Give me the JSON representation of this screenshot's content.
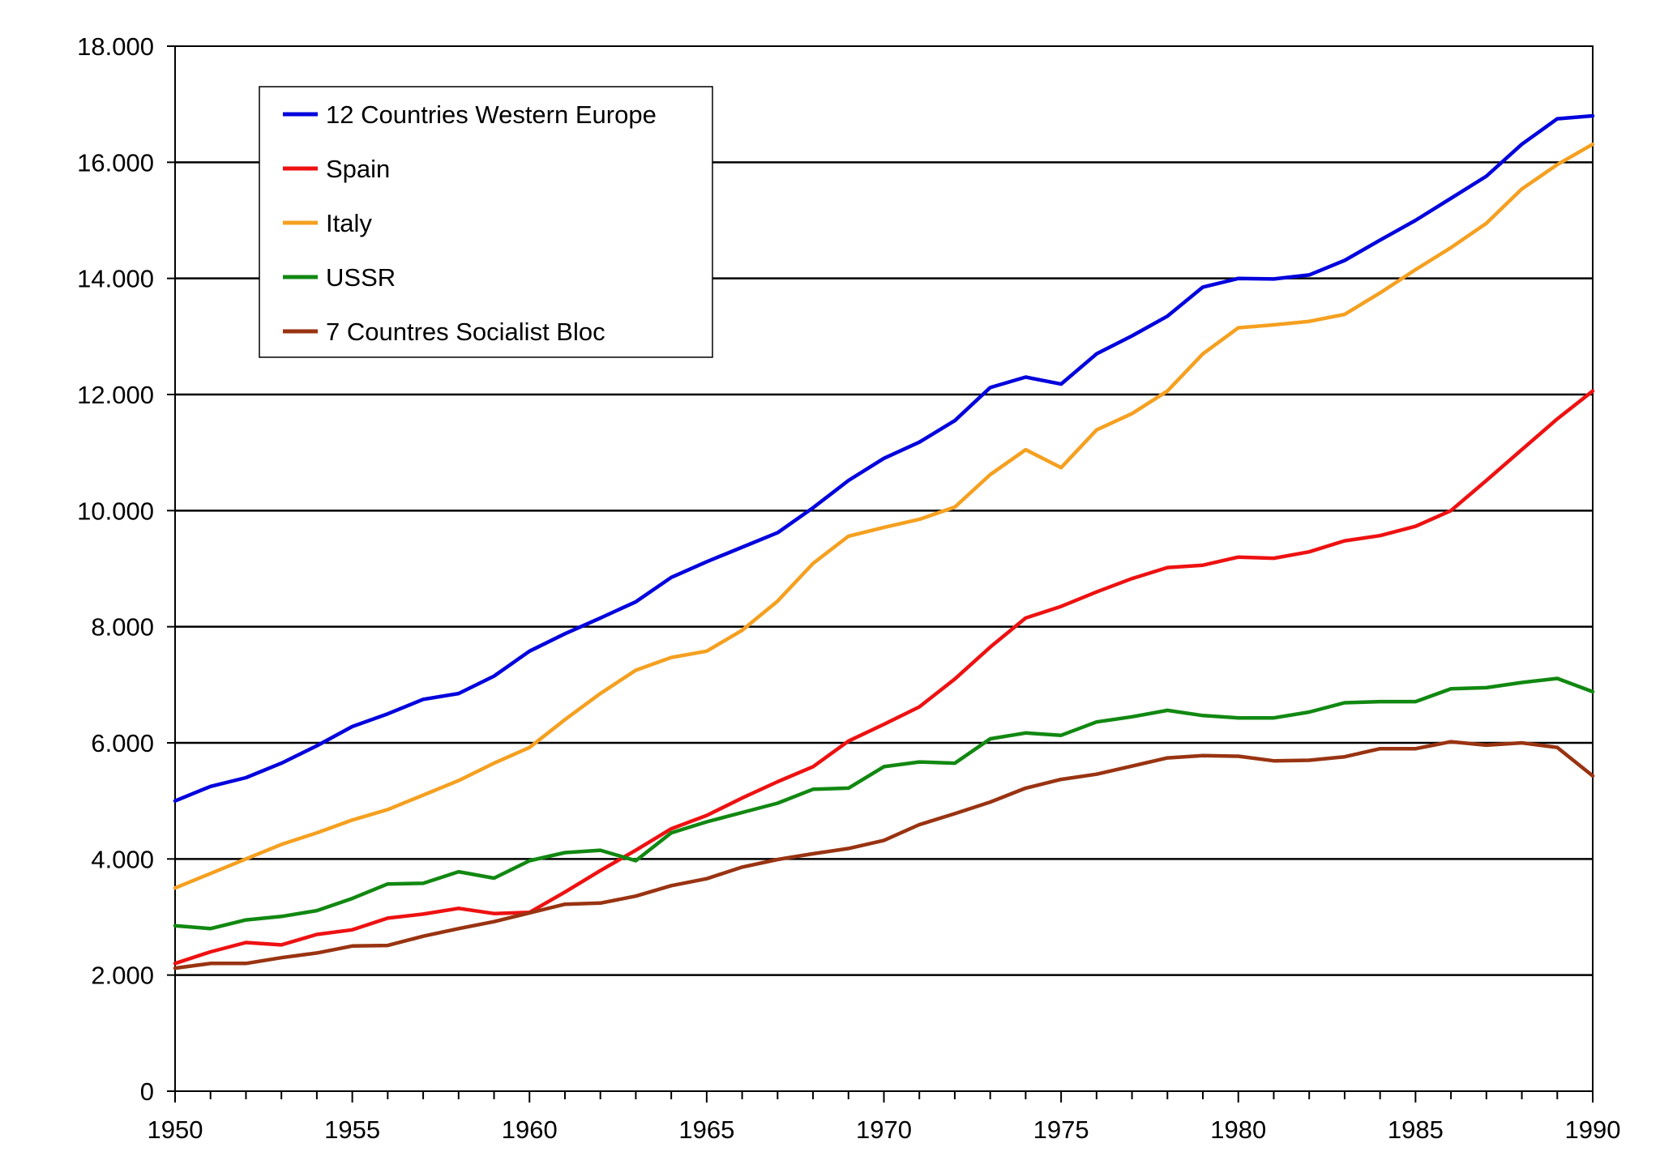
{
  "chart_data": {
    "type": "line",
    "title": "",
    "xlabel": "",
    "ylabel": "",
    "xlim": [
      1950,
      1990
    ],
    "ylim": [
      0,
      18000
    ],
    "y_ticks": [
      0,
      2000,
      4000,
      6000,
      8000,
      10000,
      12000,
      14000,
      16000,
      18000
    ],
    "y_tick_labels": [
      "0",
      "2.000",
      "4.000",
      "6.000",
      "8.000",
      "10.000",
      "12.000",
      "14.000",
      "16.000",
      "18.000"
    ],
    "x_ticks": [
      1950,
      1955,
      1960,
      1965,
      1970,
      1975,
      1980,
      1985,
      1990
    ],
    "x_tick_labels": [
      "1950",
      "1955",
      "1960",
      "1965",
      "1970",
      "1975",
      "1980",
      "1985",
      "1990"
    ],
    "grid": "horizontal",
    "legend_position": "top-left",
    "x": [
      1950,
      1951,
      1952,
      1953,
      1954,
      1955,
      1956,
      1957,
      1958,
      1959,
      1960,
      1961,
      1962,
      1963,
      1964,
      1965,
      1966,
      1967,
      1968,
      1969,
      1970,
      1971,
      1972,
      1973,
      1974,
      1975,
      1976,
      1977,
      1978,
      1979,
      1980,
      1981,
      1982,
      1983,
      1984,
      1985,
      1986,
      1987,
      1988,
      1989,
      1990
    ],
    "series": [
      {
        "name": "12 Countries Western Europe",
        "color": "#0000dd",
        "values": [
          5000,
          5250,
          5400,
          5650,
          5950,
          6280,
          6500,
          6750,
          6850,
          7150,
          7580,
          7880,
          8150,
          8430,
          8850,
          9120,
          9370,
          9620,
          10050,
          10520,
          10900,
          11180,
          11550,
          12120,
          12300,
          12180,
          12700,
          13010,
          13350,
          13850,
          14000,
          13990,
          14060,
          14310,
          14660,
          15000,
          15380,
          15760,
          16310,
          16750,
          16800
        ]
      },
      {
        "name": "Spain",
        "color": "#ee1111",
        "values": [
          2200,
          2400,
          2560,
          2520,
          2700,
          2780,
          2980,
          3050,
          3150,
          3060,
          3080,
          3430,
          3800,
          4150,
          4520,
          4750,
          5050,
          5330,
          5590,
          6030,
          6320,
          6620,
          7100,
          7650,
          8150,
          8350,
          8600,
          8830,
          9020,
          9060,
          9200,
          9180,
          9290,
          9480,
          9570,
          9730,
          10000,
          10520,
          11050,
          11580,
          12060
        ]
      },
      {
        "name": "Italy",
        "color": "#f5a020",
        "values": [
          3500,
          3750,
          4000,
          4250,
          4450,
          4670,
          4850,
          5100,
          5350,
          5650,
          5920,
          6400,
          6850,
          7250,
          7470,
          7580,
          7940,
          8440,
          9090,
          9560,
          9710,
          9850,
          10060,
          10620,
          11050,
          10740,
          11390,
          11670,
          12060,
          12700,
          13150,
          13200,
          13260,
          13380,
          13750,
          14150,
          14530,
          14950,
          15540,
          15960,
          16310
        ]
      },
      {
        "name": "USSR",
        "color": "#118811",
        "values": [
          2850,
          2800,
          2950,
          3010,
          3110,
          3320,
          3570,
          3580,
          3780,
          3670,
          3970,
          4110,
          4150,
          3970,
          4450,
          4640,
          4800,
          4960,
          5200,
          5220,
          5590,
          5670,
          5650,
          6070,
          6170,
          6130,
          6360,
          6450,
          6560,
          6470,
          6430,
          6430,
          6530,
          6690,
          6710,
          6710,
          6930,
          6950,
          7040,
          7110,
          6880
        ]
      },
      {
        "name": "7 Countres Socialist Bloc",
        "color": "#993311",
        "values": [
          2120,
          2200,
          2200,
          2300,
          2380,
          2500,
          2510,
          2670,
          2800,
          2920,
          3070,
          3220,
          3240,
          3360,
          3540,
          3660,
          3860,
          3990,
          4090,
          4180,
          4320,
          4590,
          4780,
          4980,
          5220,
          5370,
          5460,
          5600,
          5740,
          5780,
          5770,
          5690,
          5700,
          5760,
          5900,
          5900,
          6020,
          5960,
          6000,
          5920,
          5430
        ]
      }
    ]
  }
}
